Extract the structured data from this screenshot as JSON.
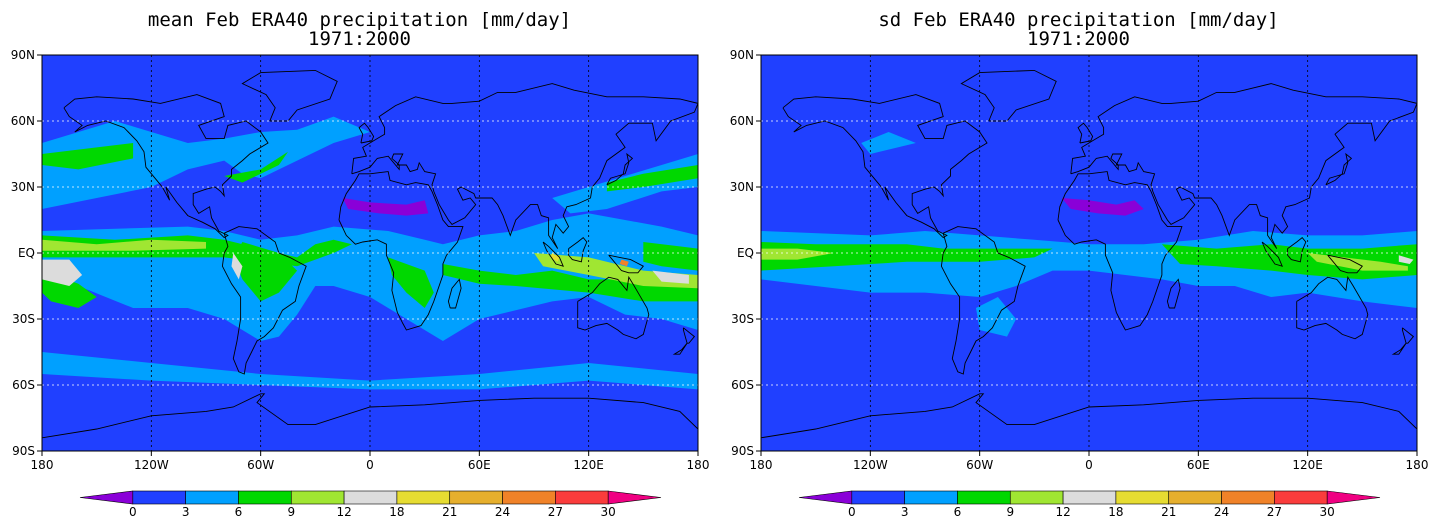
{
  "panels": [
    {
      "title_line1": "mean Feb ERA40 precipitation [mm/day]",
      "title_line2": "1971:2000",
      "type": "mean"
    },
    {
      "title_line1": "sd Feb ERA40 precipitation [mm/day]",
      "title_line2": "1971:2000",
      "type": "sd"
    }
  ],
  "axes": {
    "x_ticks": [
      "180",
      "120W",
      "60W",
      "0",
      "60E",
      "120E",
      "180"
    ],
    "y_ticks": [
      "90N",
      "60N",
      "30N",
      "EQ",
      "30S",
      "60S",
      "90S"
    ]
  },
  "colorbar": {
    "labels": [
      "0",
      "3",
      "6",
      "9",
      "12",
      "18",
      "21",
      "24",
      "27",
      "30"
    ],
    "colors": [
      "#8a00d8",
      "#2040ff",
      "#00a0ff",
      "#00d800",
      "#a0e632",
      "#dcdcdc",
      "#e6dc32",
      "#e6af2d",
      "#f08228",
      "#fa3c3c",
      "#f00082"
    ]
  },
  "colors": {
    "ocean_base": "#2040ff",
    "coast": "#000000"
  }
}
